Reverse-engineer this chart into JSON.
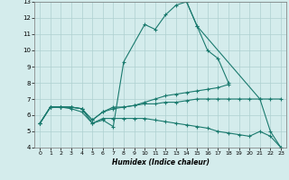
{
  "title": "",
  "xlabel": "Humidex (Indice chaleur)",
  "bg_color": "#d4ecec",
  "grid_color": "#aed0d0",
  "line_color": "#1a7a6e",
  "xlim": [
    -0.5,
    23.5
  ],
  "ylim": [
    4,
    13
  ],
  "xticks": [
    0,
    1,
    2,
    3,
    4,
    5,
    6,
    7,
    8,
    9,
    10,
    11,
    12,
    13,
    14,
    15,
    16,
    17,
    18,
    19,
    20,
    21,
    22,
    23
  ],
  "yticks": [
    4,
    5,
    6,
    7,
    8,
    9,
    10,
    11,
    12,
    13
  ],
  "series": [
    {
      "x": [
        0,
        1,
        2,
        3,
        4,
        5,
        6,
        7,
        8,
        10,
        11,
        12,
        13,
        14,
        15,
        16,
        17,
        18
      ],
      "y": [
        5.5,
        6.5,
        6.5,
        6.5,
        6.4,
        5.5,
        5.7,
        5.3,
        9.3,
        11.6,
        11.3,
        12.2,
        12.8,
        13.0,
        11.5,
        10.0,
        9.5,
        8.0
      ]
    },
    {
      "x": [
        0,
        1,
        2,
        3,
        4,
        5,
        6,
        7,
        8,
        9,
        10,
        11,
        12,
        13,
        14,
        15,
        16,
        17,
        18
      ],
      "y": [
        5.5,
        6.5,
        6.5,
        6.5,
        6.4,
        5.7,
        6.2,
        6.4,
        6.5,
        6.6,
        6.8,
        7.0,
        7.2,
        7.3,
        7.4,
        7.5,
        7.6,
        7.7,
        7.9
      ]
    },
    {
      "x": [
        0,
        1,
        2,
        3,
        4,
        5,
        6,
        7,
        8,
        9,
        10,
        11,
        12,
        13,
        14,
        15,
        16,
        17,
        18,
        19,
        20,
        21,
        22,
        23
      ],
      "y": [
        5.5,
        6.5,
        6.5,
        6.5,
        6.4,
        5.7,
        6.2,
        6.5,
        6.5,
        6.6,
        6.7,
        6.7,
        6.8,
        6.8,
        6.9,
        7.0,
        7.0,
        7.0,
        7.0,
        7.0,
        7.0,
        7.0,
        7.0,
        7.0
      ]
    },
    {
      "x": [
        0,
        1,
        2,
        3,
        4,
        5,
        6,
        7,
        8,
        9,
        10,
        11,
        12,
        13,
        14,
        15,
        16,
        17,
        18,
        19,
        20,
        21,
        22,
        23
      ],
      "y": [
        5.5,
        6.5,
        6.5,
        6.4,
        6.2,
        5.5,
        5.8,
        5.8,
        5.8,
        5.8,
        5.8,
        5.7,
        5.6,
        5.5,
        5.4,
        5.3,
        5.2,
        5.0,
        4.9,
        4.8,
        4.7,
        5.0,
        4.7,
        4.0
      ]
    }
  ],
  "right_tail": {
    "x": [
      14,
      15,
      21,
      22,
      23
    ],
    "y": [
      13.0,
      11.5,
      7.0,
      5.0,
      4.0
    ]
  }
}
